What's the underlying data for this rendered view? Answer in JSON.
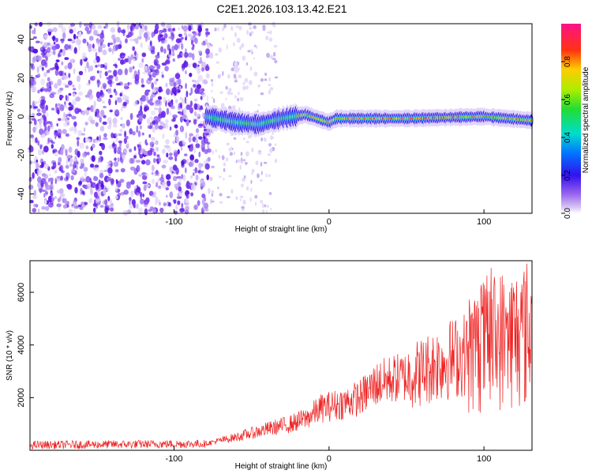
{
  "title": "C2E1.2026.103.13.42.E21",
  "chart_data": [
    {
      "type": "heatmap",
      "xlabel": "Height of straight line (km)",
      "ylabel": "Frequency (Hz)",
      "xlim": [
        -193,
        131
      ],
      "ylim": [
        -50,
        48
      ],
      "x_ticks": [
        -100,
        0,
        100
      ],
      "x_tick_labels": [
        "-100",
        "0",
        "100"
      ],
      "y_ticks": [
        -40,
        -20,
        0,
        20,
        40
      ],
      "y_tick_labels": [
        "-40",
        "-20",
        "0",
        "20",
        "40"
      ],
      "noise_region_x": [
        -193,
        -76
      ],
      "sparse_region_x": [
        -76,
        -34
      ],
      "signal_line": {
        "start_x": -79,
        "end_x": 131,
        "center_freq": [
          [
            -79,
            0
          ],
          [
            -60,
            -3
          ],
          [
            -45,
            -4
          ],
          [
            -30,
            -1
          ],
          [
            -15,
            1
          ],
          [
            0,
            -3
          ],
          [
            5,
            -1
          ],
          [
            50,
            -1
          ],
          [
            100,
            0
          ],
          [
            131,
            -2
          ]
        ]
      },
      "colorbar": {
        "label": "Normalized spectral amplitude",
        "range": [
          0,
          1
        ],
        "ticks": [
          0.0,
          0.2,
          0.4,
          0.6,
          0.8
        ],
        "tick_labels": [
          "0.0",
          "0.2",
          "0.4",
          "0.6",
          "0.8"
        ]
      }
    },
    {
      "type": "line",
      "xlabel": "Height of straight line (km)",
      "ylabel": "SNR (10 * v/v)",
      "xlim": [
        -193,
        131
      ],
      "ylim": [
        0,
        7200
      ],
      "x_ticks": [
        -100,
        0,
        100
      ],
      "x_tick_labels": [
        "-100",
        "0",
        "100"
      ],
      "y_ticks": [
        2000,
        4000,
        6000
      ],
      "y_tick_labels": [
        "2000",
        "4000",
        "6000"
      ],
      "line_color": "#ee2222",
      "envelope": [
        [
          -193,
          200
        ],
        [
          -80,
          250
        ],
        [
          -60,
          500
        ],
        [
          -40,
          800
        ],
        [
          -25,
          1000
        ],
        [
          -15,
          1200
        ],
        [
          -5,
          1600
        ],
        [
          10,
          1800
        ],
        [
          20,
          2000
        ],
        [
          30,
          2500
        ],
        [
          40,
          2700
        ],
        [
          50,
          2800
        ],
        [
          60,
          3000
        ],
        [
          70,
          3300
        ],
        [
          80,
          3500
        ],
        [
          90,
          3700
        ],
        [
          100,
          4000
        ],
        [
          110,
          4200
        ],
        [
          120,
          4300
        ],
        [
          131,
          4500
        ]
      ]
    }
  ]
}
